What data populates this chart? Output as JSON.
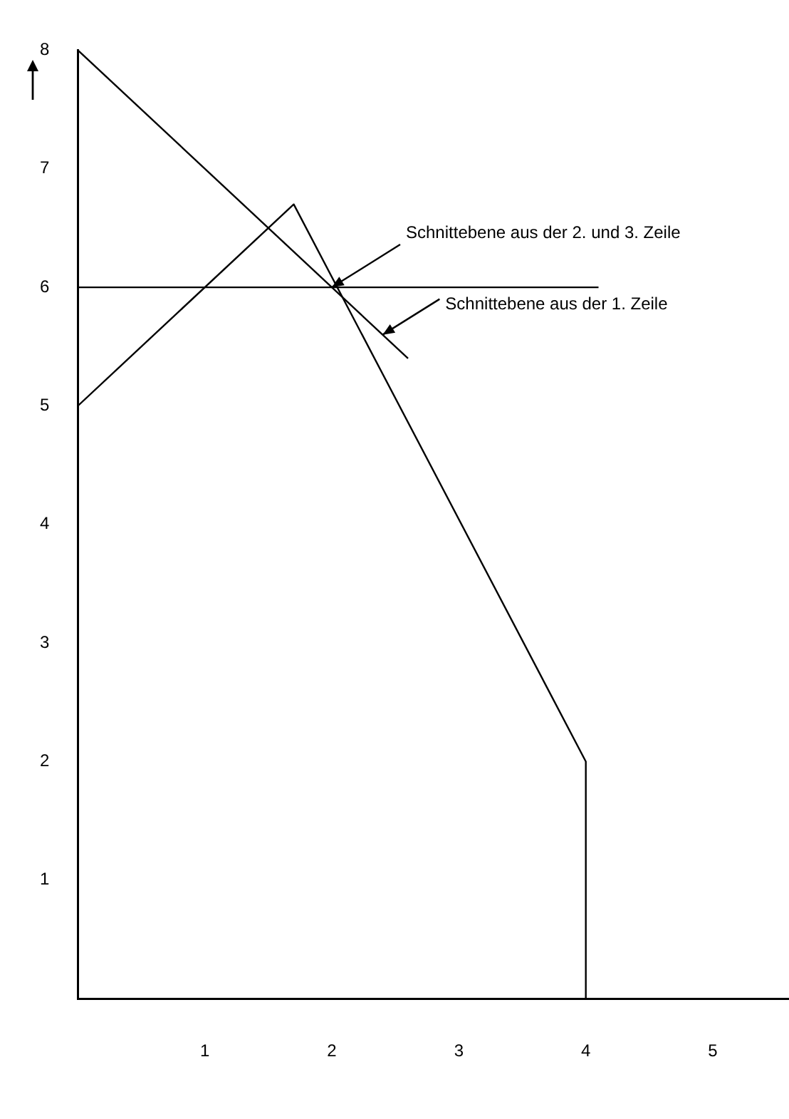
{
  "chart_data": {
    "type": "line",
    "xlim": [
      0,
      5.6
    ],
    "ylim": [
      0,
      8
    ],
    "xticks": [
      1,
      2,
      3,
      4,
      5
    ],
    "yticks": [
      1,
      2,
      3,
      4,
      5,
      6,
      7,
      8
    ],
    "grid": false,
    "legend": false,
    "marker": "none",
    "line_style": "solid",
    "series": [
      {
        "color": "#000000",
        "x": [
          0,
          2.6
        ],
        "values": [
          8,
          5.4
        ]
      },
      {
        "color": "#000000",
        "x": [
          0,
          1.7,
          4,
          4
        ],
        "values": [
          5,
          6.7,
          2,
          0
        ]
      },
      {
        "color": "#000000",
        "x": [
          0,
          4.1
        ],
        "values": [
          6,
          6
        ]
      }
    ],
    "annotations": [
      {
        "text": "Schnittebene aus der 2. und 3. Zeile",
        "x": 2,
        "y": 6
      },
      {
        "text": "Schnittebene aus der 1. Zeile",
        "x": 2.4,
        "y": 5.6
      }
    ]
  }
}
